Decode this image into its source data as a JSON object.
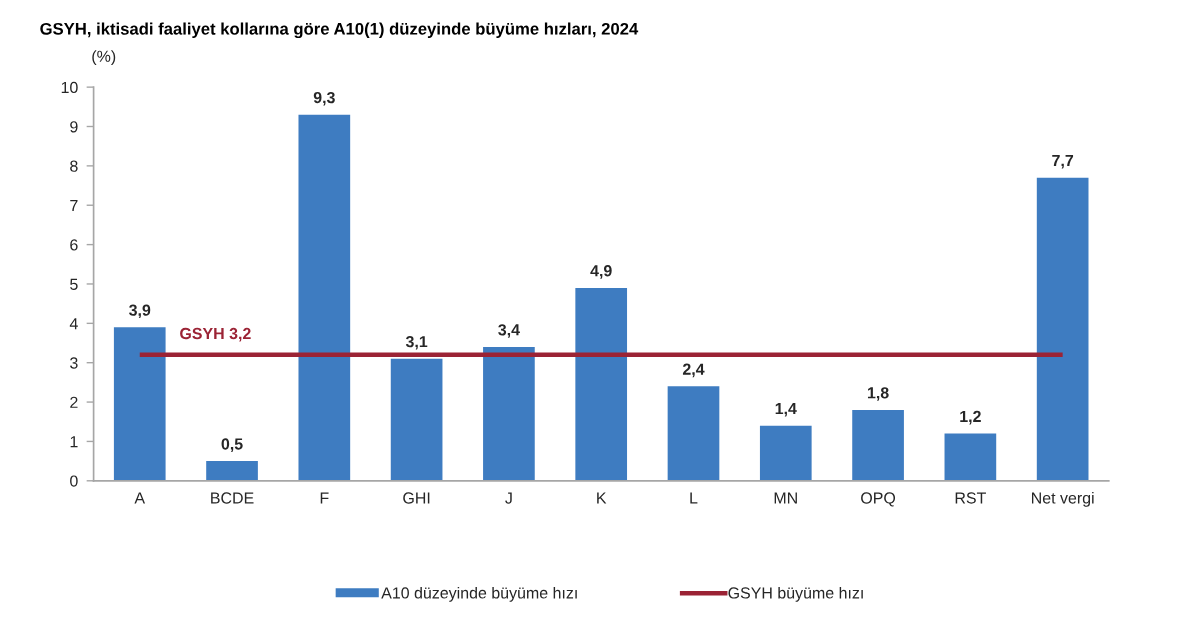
{
  "chart_data": {
    "type": "bar",
    "title": "GSYH, iktisadi faaliyet kollarına göre A10(1) düzeyinde büyüme hızları, 2024",
    "ylabel": "(%)",
    "categories": [
      "A",
      "BCDE",
      "F",
      "GHI",
      "J",
      "K",
      "L",
      "MN",
      "OPQ",
      "RST",
      "Net vergi"
    ],
    "series": [
      {
        "name": "A10 düzeyinde büyüme hızı",
        "color": "#3e7cc1",
        "values": [
          3.9,
          0.5,
          9.3,
          3.1,
          3.4,
          4.9,
          2.4,
          1.4,
          1.8,
          1.2,
          7.7
        ],
        "value_labels": [
          "3,9",
          "0,5",
          "9,3",
          "3,1",
          "3,4",
          "4,9",
          "2,4",
          "1,4",
          "1,8",
          "1,2",
          "7,7"
        ]
      },
      {
        "name": "GSYH büyüme hızı",
        "type": "line",
        "color": "#9b2335",
        "values": [
          3.2,
          3.2,
          3.2,
          3.2,
          3.2,
          3.2,
          3.2,
          3.2,
          3.2,
          3.2,
          3.2
        ]
      }
    ],
    "annotations": [
      {
        "text": "GSYH 3,2",
        "x": "BCDE",
        "y": 3.2
      }
    ],
    "ylim": [
      0,
      10
    ],
    "yticks": [
      0,
      1,
      2,
      3,
      4,
      5,
      6,
      7,
      8,
      9,
      10
    ],
    "legend": "bottom"
  }
}
